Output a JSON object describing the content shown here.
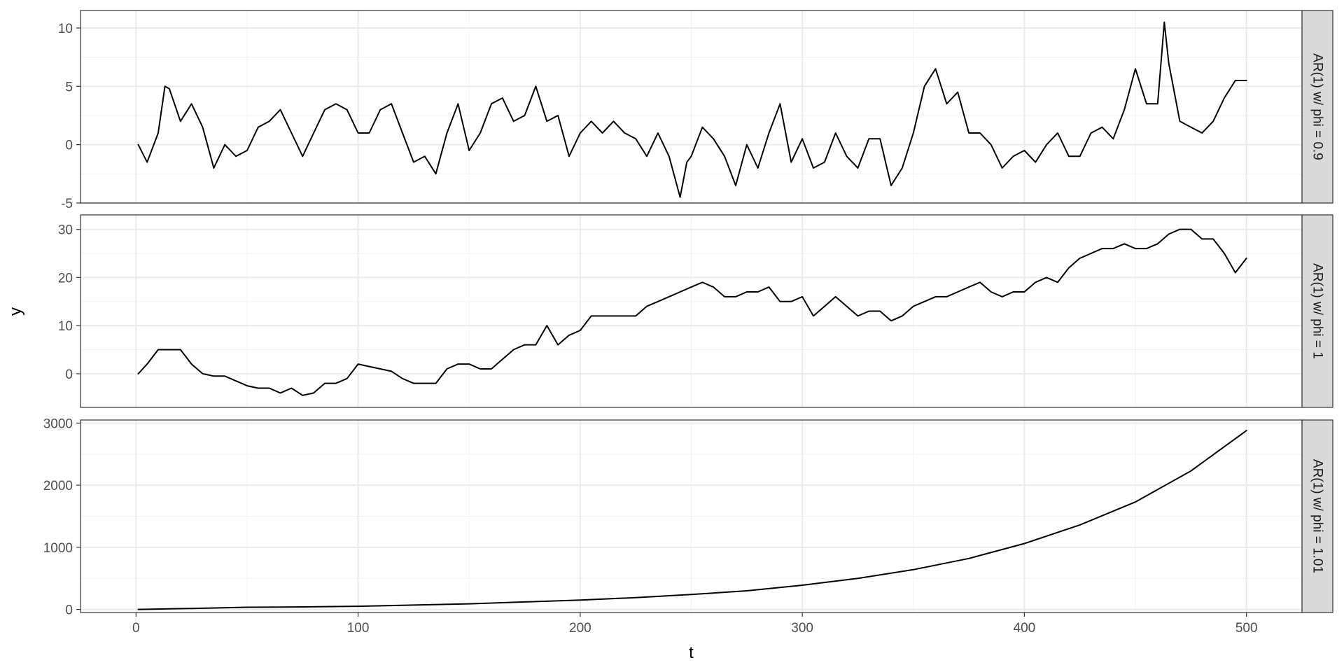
{
  "chart_data": {
    "type": "line",
    "xlabel": "t",
    "ylabel": "y",
    "x_range": [
      1,
      500
    ],
    "xlim": [
      -25,
      525
    ],
    "x_ticks": [
      0,
      100,
      200,
      300,
      400,
      500
    ],
    "grid": true,
    "facet_strip_position": "right",
    "line_color": "#000000",
    "panels": [
      {
        "strip_label": "AR(1) w/ phi = 0.9",
        "ylim": [
          -5,
          11.5
        ],
        "y_ticks": [
          -5,
          0,
          5,
          10
        ],
        "y_tick_labels": [
          "-5",
          "0",
          "5",
          "10"
        ],
        "series": [
          {
            "x": [
              1,
              5,
              10,
              13,
              15,
              20,
              25,
              30,
              35,
              40,
              45,
              50,
              55,
              60,
              65,
              70,
              75,
              80,
              85,
              90,
              95,
              100,
              105,
              110,
              115,
              120,
              125,
              130,
              135,
              140,
              145,
              150,
              155,
              160,
              165,
              170,
              175,
              180,
              185,
              190,
              195,
              200,
              205,
              210,
              215,
              220,
              225,
              230,
              235,
              240,
              245,
              248,
              250,
              255,
              260,
              265,
              270,
              275,
              280,
              285,
              290,
              295,
              300,
              305,
              310,
              315,
              320,
              325,
              330,
              335,
              340,
              345,
              350,
              355,
              360,
              365,
              370,
              375,
              380,
              385,
              390,
              395,
              400,
              405,
              410,
              415,
              420,
              425,
              430,
              435,
              440,
              445,
              450,
              455,
              460,
              463,
              465,
              470,
              475,
              480,
              485,
              490,
              495,
              500
            ],
            "y": [
              0,
              -1.5,
              1,
              5,
              4.8,
              2,
              3.5,
              1.5,
              -2,
              0,
              -1,
              -0.5,
              1.5,
              2,
              3,
              1,
              -1,
              1,
              3,
              3.5,
              3,
              1,
              1,
              3,
              3.5,
              1,
              -1.5,
              -1,
              -2.5,
              1,
              3.5,
              -0.5,
              1,
              3.5,
              4,
              2,
              2.5,
              5,
              2,
              2.5,
              -1,
              1,
              2,
              1,
              2,
              1,
              0.5,
              -1,
              1,
              -1,
              -4.5,
              -1.5,
              -1,
              1.5,
              0.5,
              -1,
              -3.5,
              0,
              -2,
              1,
              3.5,
              -1.5,
              0.5,
              -2,
              -1.5,
              1,
              -1,
              -2,
              0.5,
              0.5,
              -3.5,
              -2,
              1,
              5,
              6.5,
              3.5,
              4.5,
              1,
              1,
              0,
              -2,
              -1,
              -0.5,
              -1.5,
              0,
              1,
              -1,
              -1,
              1,
              1.5,
              0.5,
              3,
              6.5,
              3.5,
              3.5,
              10.5,
              7,
              2,
              1.5,
              1,
              2,
              4,
              5.5,
              5.5
            ]
          }
        ]
      },
      {
        "strip_label": "AR(1) w/ phi = 1",
        "ylim": [
          -7,
          33
        ],
        "y_ticks": [
          0,
          10,
          20,
          30
        ],
        "y_tick_labels": [
          "0",
          "10",
          "20",
          "30"
        ],
        "series": [
          {
            "x": [
              1,
              5,
              10,
              15,
              20,
              25,
              30,
              35,
              40,
              45,
              50,
              55,
              60,
              65,
              70,
              75,
              80,
              85,
              90,
              95,
              100,
              105,
              110,
              115,
              120,
              125,
              130,
              135,
              140,
              145,
              150,
              155,
              160,
              165,
              170,
              175,
              180,
              185,
              190,
              195,
              200,
              205,
              210,
              215,
              220,
              225,
              230,
              235,
              240,
              245,
              250,
              255,
              260,
              265,
              270,
              275,
              280,
              285,
              290,
              295,
              300,
              305,
              310,
              315,
              320,
              325,
              330,
              335,
              340,
              345,
              350,
              355,
              360,
              365,
              370,
              375,
              380,
              385,
              390,
              395,
              400,
              405,
              410,
              415,
              420,
              425,
              430,
              435,
              440,
              445,
              450,
              455,
              460,
              465,
              470,
              475,
              480,
              485,
              490,
              495,
              500
            ],
            "y": [
              0,
              2,
              5,
              5,
              5,
              2,
              0,
              -0.5,
              -0.5,
              -1.5,
              -2.5,
              -3,
              -3,
              -4,
              -3,
              -4.5,
              -4,
              -2,
              -2,
              -1,
              2,
              1.5,
              1,
              0.5,
              -1,
              -2,
              -2,
              -2,
              1,
              2,
              2,
              1,
              1,
              3,
              5,
              6,
              6,
              10,
              6,
              8,
              9,
              12,
              12,
              12,
              12,
              12,
              14,
              15,
              16,
              17,
              18,
              19,
              18,
              16,
              16,
              17,
              17,
              18,
              15,
              15,
              16,
              12,
              14,
              16,
              14,
              12,
              13,
              13,
              11,
              12,
              14,
              15,
              16,
              16,
              17,
              18,
              19,
              17,
              16,
              17,
              17,
              19,
              20,
              19,
              22,
              24,
              25,
              26,
              26,
              27,
              26,
              26,
              27,
              29,
              30,
              30,
              28,
              28,
              25,
              21,
              24
            ]
          }
        ]
      },
      {
        "strip_label": "AR(1) w/ phi = 1.01",
        "ylim": [
          -50,
          3050
        ],
        "y_ticks": [
          0,
          1000,
          2000,
          3000
        ],
        "y_tick_labels": [
          "0",
          "1000",
          "2000",
          "3000"
        ],
        "series": [
          {
            "x": [
              1,
              25,
              50,
              75,
              100,
              125,
              150,
              175,
              200,
              225,
              250,
              275,
              300,
              325,
              350,
              375,
              400,
              425,
              450,
              475,
              500
            ],
            "y": [
              0,
              15,
              35,
              40,
              50,
              70,
              90,
              120,
              150,
              190,
              240,
              300,
              390,
              500,
              640,
              820,
              1060,
              1360,
              1730,
              2230,
              2880
            ]
          }
        ]
      }
    ]
  }
}
